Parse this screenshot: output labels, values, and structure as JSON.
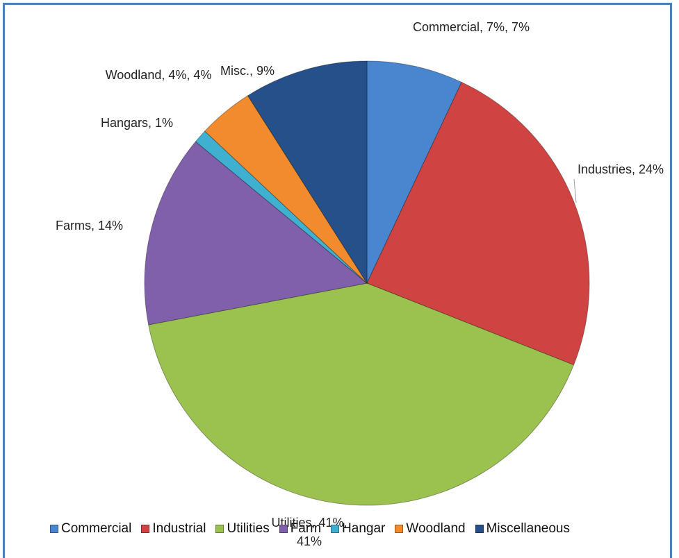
{
  "chart_data": {
    "type": "pie",
    "categories": [
      "Commercial",
      "Industrial",
      "Utilities",
      "Farm",
      "Hangar",
      "Woodland",
      "Miscellaneous"
    ],
    "values": [
      7,
      24,
      41,
      14,
      1,
      4,
      9
    ],
    "value_labels": [
      "Commercial, 7%, 7%",
      "Industries, 24%",
      "Utilities, 41%, 41%",
      "Farms, 14%",
      "Hangars, 1%",
      "Woodland, 4%, 4%",
      "Misc., 9%"
    ],
    "colors": [
      "#4a86cf",
      "#cf4442",
      "#9bc24e",
      "#8060aa",
      "#3fb0cf",
      "#f28b2e",
      "#25508a"
    ],
    "legend": "bottom"
  }
}
